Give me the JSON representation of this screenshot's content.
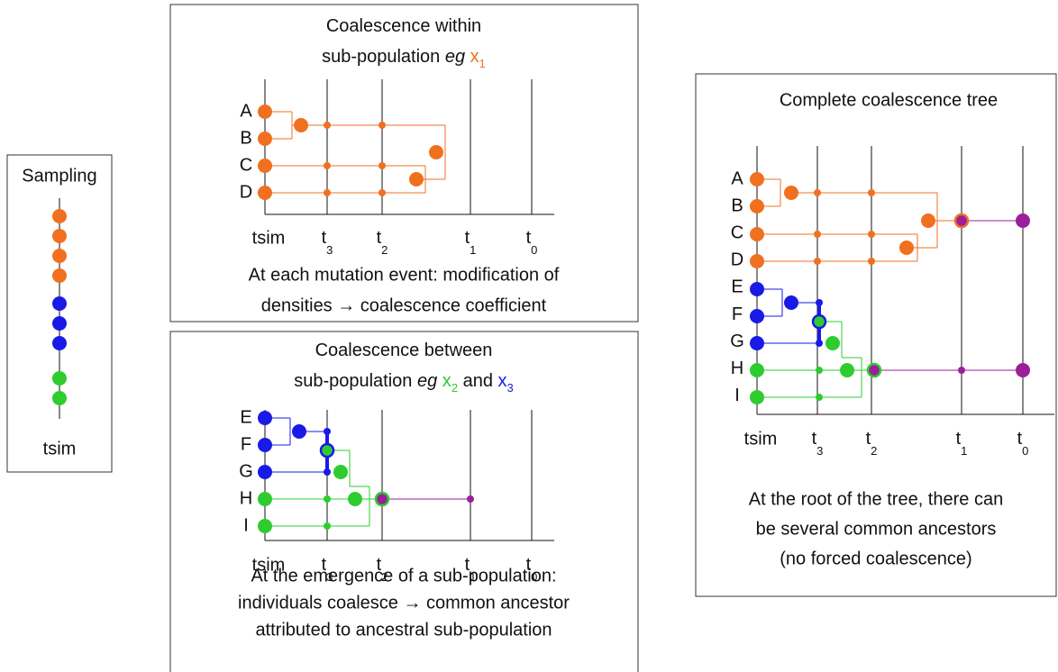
{
  "sampling": {
    "title": "Sampling",
    "axis_label": "tsim"
  },
  "within": {
    "title": [
      [
        {
          "text": "Coalescence within"
        }
      ],
      [
        {
          "text": "sub-population "
        },
        {
          "text": "eg",
          "italic": true
        },
        {
          "text": " x",
          "color": "#f07020"
        },
        {
          "text": "1",
          "color": "#f07020",
          "sub": true
        }
      ]
    ],
    "node_labels": [
      "A",
      "B",
      "C",
      "D"
    ],
    "axis_labels": [
      "tsim",
      {
        "base": "t",
        "sub": "3"
      },
      {
        "base": "t",
        "sub": "2"
      },
      {
        "base": "t",
        "sub": "1"
      },
      {
        "base": "t",
        "sub": "0"
      }
    ],
    "caption": [
      "At each mutation event: modification of",
      "densities → coalescence coefficient"
    ]
  },
  "between": {
    "title": [
      [
        {
          "text": "Coalescence between"
        }
      ],
      [
        {
          "text": "sub-population "
        },
        {
          "text": "eg",
          "italic": true
        },
        {
          "text": " x",
          "color": "#2ecc2e"
        },
        {
          "text": "2",
          "color": "#2ecc2e",
          "sub": true
        },
        {
          "text": " and "
        },
        {
          "text": "x",
          "color": "#1a1ae6"
        },
        {
          "text": "3",
          "color": "#1a1ae6",
          "sub": true
        }
      ]
    ],
    "node_labels": [
      "E",
      "F",
      "G",
      "H",
      "I"
    ],
    "axis_labels": [
      "tsim",
      {
        "base": "t",
        "sub": "3"
      },
      {
        "base": "t",
        "sub": "2"
      },
      {
        "base": "t",
        "sub": "1"
      },
      {
        "base": "t",
        "sub": "0"
      }
    ],
    "caption": [
      "At the emergence of a sub-population:",
      "individuals coalesce → common ancestor",
      "attributed to ancestral sub-population"
    ]
  },
  "complete": {
    "title": "Complete coalescence tree",
    "node_labels": [
      "A",
      "B",
      "C",
      "D",
      "E",
      "F",
      "G",
      "H",
      "I"
    ],
    "axis_labels": [
      "tsim",
      {
        "base": "t",
        "sub": "3"
      },
      {
        "base": "t",
        "sub": "2"
      },
      {
        "base": "t",
        "sub": "1"
      },
      {
        "base": "t",
        "sub": "0"
      }
    ],
    "caption": [
      "At the root of the tree, there can",
      "be several common ancestors",
      "(no forced coalescence)"
    ]
  }
}
